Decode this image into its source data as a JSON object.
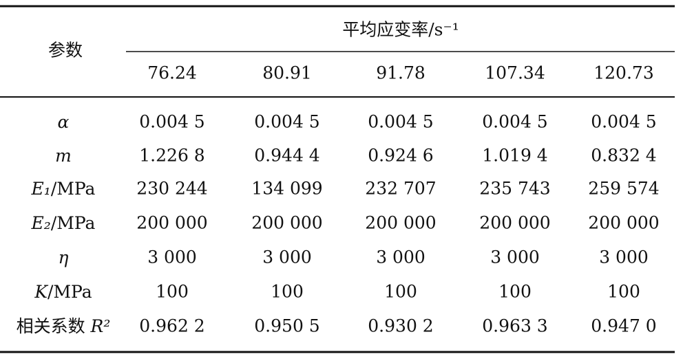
{
  "table": {
    "corner": "参数",
    "group_header": "平均应变率/s⁻¹",
    "columns": [
      "76.24",
      "80.91",
      "91.78",
      "107.34",
      "120.73"
    ],
    "rows": [
      {
        "label": {
          "symbol": "α"
        },
        "cells": [
          "0.004 5",
          "0.004 5",
          "0.004 5",
          "0.004 5",
          "0.004 5"
        ]
      },
      {
        "label": {
          "symbol": "m"
        },
        "cells": [
          "1.226 8",
          "0.944 4",
          "0.924 6",
          "1.019 4",
          "0.832 4"
        ]
      },
      {
        "label": {
          "symbol": "E₁",
          "unit": "/MPa"
        },
        "cells": [
          "230 244",
          "134 099",
          "232 707",
          "235 743",
          "259 574"
        ]
      },
      {
        "label": {
          "symbol": "E₂",
          "unit": "/MPa"
        },
        "cells": [
          "200 000",
          "200 000",
          "200 000",
          "200 000",
          "200 000"
        ]
      },
      {
        "label": {
          "symbol": "η"
        },
        "cells": [
          "3 000",
          "3 000",
          "3 000",
          "3 000",
          "3 000"
        ]
      },
      {
        "label": {
          "symbol": "K",
          "unit": "/MPa"
        },
        "cells": [
          "100",
          "100",
          "100",
          "100",
          "100"
        ]
      },
      {
        "label": {
          "prefix": "相关系数 ",
          "symbol": "R²"
        },
        "cells": [
          "0.962 2",
          "0.950 5",
          "0.930 2",
          "0.963 3",
          "0.947 0"
        ]
      }
    ]
  }
}
